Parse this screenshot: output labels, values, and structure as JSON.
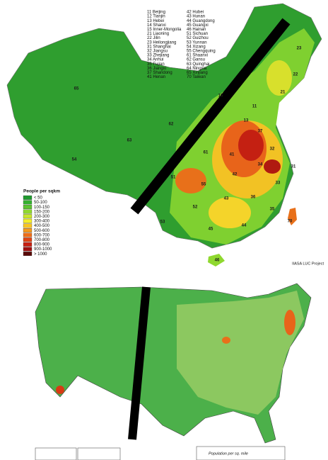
{
  "china_map": {
    "province_key": [
      "11 Beijing",
      "12 Tianjin",
      "13 Hebei",
      "14 Shanxi",
      "15 Inner-Mongolia",
      "21 Liaoning",
      "22 Jilin",
      "23 Heilongjiang",
      "31 Shanghai",
      "32 Jiangsu",
      "33 Zhejiang",
      "34 Anhui",
      "35 Fujian",
      "36 Jiangxi",
      "37 Shandong",
      "41 Henan",
      "42 Hubei",
      "43 Hunan",
      "44 Guangdong",
      "45 Guangxi",
      "46 Hainan",
      "51 Sichuan",
      "52 Guizhou",
      "53 Yunnan",
      "54 Xizang",
      "55 Chengquing",
      "61 Shaanxi",
      "62 Gansu",
      "63 Quinghai",
      "64 Ningxia",
      "65 Xinjiang",
      "70 Taiwan"
    ],
    "legend": {
      "title": "People per sqkm",
      "items": [
        {
          "label": "< 50",
          "color": "#1f9a2e"
        },
        {
          "label": "50-100",
          "color": "#35b12f"
        },
        {
          "label": "100-150",
          "color": "#5cc52f"
        },
        {
          "label": "150-200",
          "color": "#8fd82f"
        },
        {
          "label": "200-300",
          "color": "#c8e62c"
        },
        {
          "label": "300-400",
          "color": "#f4ee2a"
        },
        {
          "label": "400-500",
          "color": "#f8c522"
        },
        {
          "label": "500-600",
          "color": "#f59a1c"
        },
        {
          "label": "600-700",
          "color": "#ee6e18"
        },
        {
          "label": "700-800",
          "color": "#e04414"
        },
        {
          "label": "800-900",
          "color": "#c82012"
        },
        {
          "label": "900-1000",
          "color": "#9e1010"
        },
        {
          "label": "> 1000",
          "color": "#5a0a08"
        }
      ]
    },
    "map_labels": [
      "65",
      "54",
      "63",
      "62",
      "23",
      "22",
      "21",
      "15",
      "11",
      "13",
      "37",
      "61",
      "41",
      "32",
      "31",
      "34",
      "42",
      "51",
      "55",
      "33",
      "36",
      "43",
      "52",
      "53",
      "35",
      "44",
      "45",
      "70",
      "46"
    ],
    "credit": "IIASA LUC Project"
  },
  "us_map": {
    "legend_title": "Population per sq. mile"
  }
}
